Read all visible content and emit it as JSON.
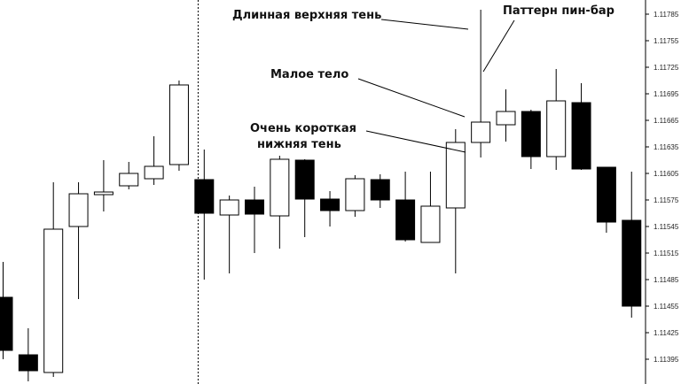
{
  "chart_data": {
    "type": "candlestick",
    "title": "",
    "price_axis": {
      "side": "right",
      "ylim": [
        1.11375,
        1.11795
      ],
      "ticks": [
        "1.11785",
        "1.11755",
        "1.11725",
        "1.11695",
        "1.11665",
        "1.11635",
        "1.11605",
        "1.11575",
        "1.11545",
        "1.11515",
        "1.11485",
        "1.11455",
        "1.11425",
        "1.11395"
      ]
    },
    "separator_after_candle": 7,
    "candles": [
      {
        "o": 1.11465,
        "h": 1.11505,
        "l": 1.11395,
        "c": 1.11405,
        "dir": "bear"
      },
      {
        "o": 1.114,
        "h": 1.1143,
        "l": 1.1137,
        "c": 1.11382,
        "dir": "bear"
      },
      {
        "o": 1.1138,
        "h": 1.11595,
        "l": 1.11375,
        "c": 1.11542,
        "dir": "bull"
      },
      {
        "o": 1.11545,
        "h": 1.11595,
        "l": 1.11463,
        "c": 1.11582,
        "dir": "bull"
      },
      {
        "o": 1.11581,
        "h": 1.1162,
        "l": 1.11562,
        "c": 1.11584,
        "dir": "bull"
      },
      {
        "o": 1.11591,
        "h": 1.11618,
        "l": 1.11587,
        "c": 1.11605,
        "dir": "bull"
      },
      {
        "o": 1.11599,
        "h": 1.11647,
        "l": 1.11592,
        "c": 1.11613,
        "dir": "bull"
      },
      {
        "o": 1.11615,
        "h": 1.1171,
        "l": 1.11608,
        "c": 1.11705,
        "dir": "bull"
      },
      {
        "o": 1.11598,
        "h": 1.11632,
        "l": 1.11485,
        "c": 1.1156,
        "dir": "bear"
      },
      {
        "o": 1.11558,
        "h": 1.1158,
        "l": 1.11492,
        "c": 1.11575,
        "dir": "bull"
      },
      {
        "o": 1.11575,
        "h": 1.1159,
        "l": 1.11515,
        "c": 1.11559,
        "dir": "bear"
      },
      {
        "o": 1.11557,
        "h": 1.11625,
        "l": 1.1152,
        "c": 1.11621,
        "dir": "bull"
      },
      {
        "o": 1.1162,
        "h": 1.11621,
        "l": 1.11533,
        "c": 1.11576,
        "dir": "bear"
      },
      {
        "o": 1.11576,
        "h": 1.11585,
        "l": 1.11545,
        "c": 1.11563,
        "dir": "bear"
      },
      {
        "o": 1.11563,
        "h": 1.11603,
        "l": 1.11556,
        "c": 1.11599,
        "dir": "bull"
      },
      {
        "o": 1.11598,
        "h": 1.11604,
        "l": 1.11566,
        "c": 1.11575,
        "dir": "bear"
      },
      {
        "o": 1.11575,
        "h": 1.11607,
        "l": 1.11528,
        "c": 1.1153,
        "dir": "bear"
      },
      {
        "o": 1.11527,
        "h": 1.11607,
        "l": 1.11527,
        "c": 1.11568,
        "dir": "bull"
      },
      {
        "o": 1.11566,
        "h": 1.11655,
        "l": 1.11492,
        "c": 1.1164,
        "dir": "bull"
      },
      {
        "o": 1.1164,
        "h": 1.1179,
        "l": 1.11623,
        "c": 1.11663,
        "dir": "bull"
      },
      {
        "o": 1.1166,
        "h": 1.117,
        "l": 1.11641,
        "c": 1.11675,
        "dir": "bull"
      },
      {
        "o": 1.11675,
        "h": 1.11677,
        "l": 1.1161,
        "c": 1.11624,
        "dir": "bear"
      },
      {
        "o": 1.11624,
        "h": 1.11723,
        "l": 1.11609,
        "c": 1.11687,
        "dir": "bull"
      },
      {
        "o": 1.11685,
        "h": 1.11707,
        "l": 1.11609,
        "c": 1.1161,
        "dir": "bear"
      },
      {
        "o": 1.11612,
        "h": 1.11612,
        "l": 1.11538,
        "c": 1.1155,
        "dir": "bear"
      },
      {
        "o": 1.11552,
        "h": 1.11607,
        "l": 1.11442,
        "c": 1.11455,
        "dir": "bear"
      }
    ],
    "annotations": [
      {
        "text": "Длинная верхняя тень",
        "target_candle": 19,
        "target": "upper_shadow"
      },
      {
        "text": "Паттерн пин-бар",
        "target_candle": 19,
        "target": "candle"
      },
      {
        "text": "Малое тело",
        "target_candle": 19,
        "target": "body"
      },
      {
        "text": "Очень короткая",
        "target_candle": 18,
        "target": "lower_shadow"
      },
      {
        "text": "нижняя тень",
        "target_candle": 18,
        "target": "lower_shadow"
      }
    ]
  }
}
